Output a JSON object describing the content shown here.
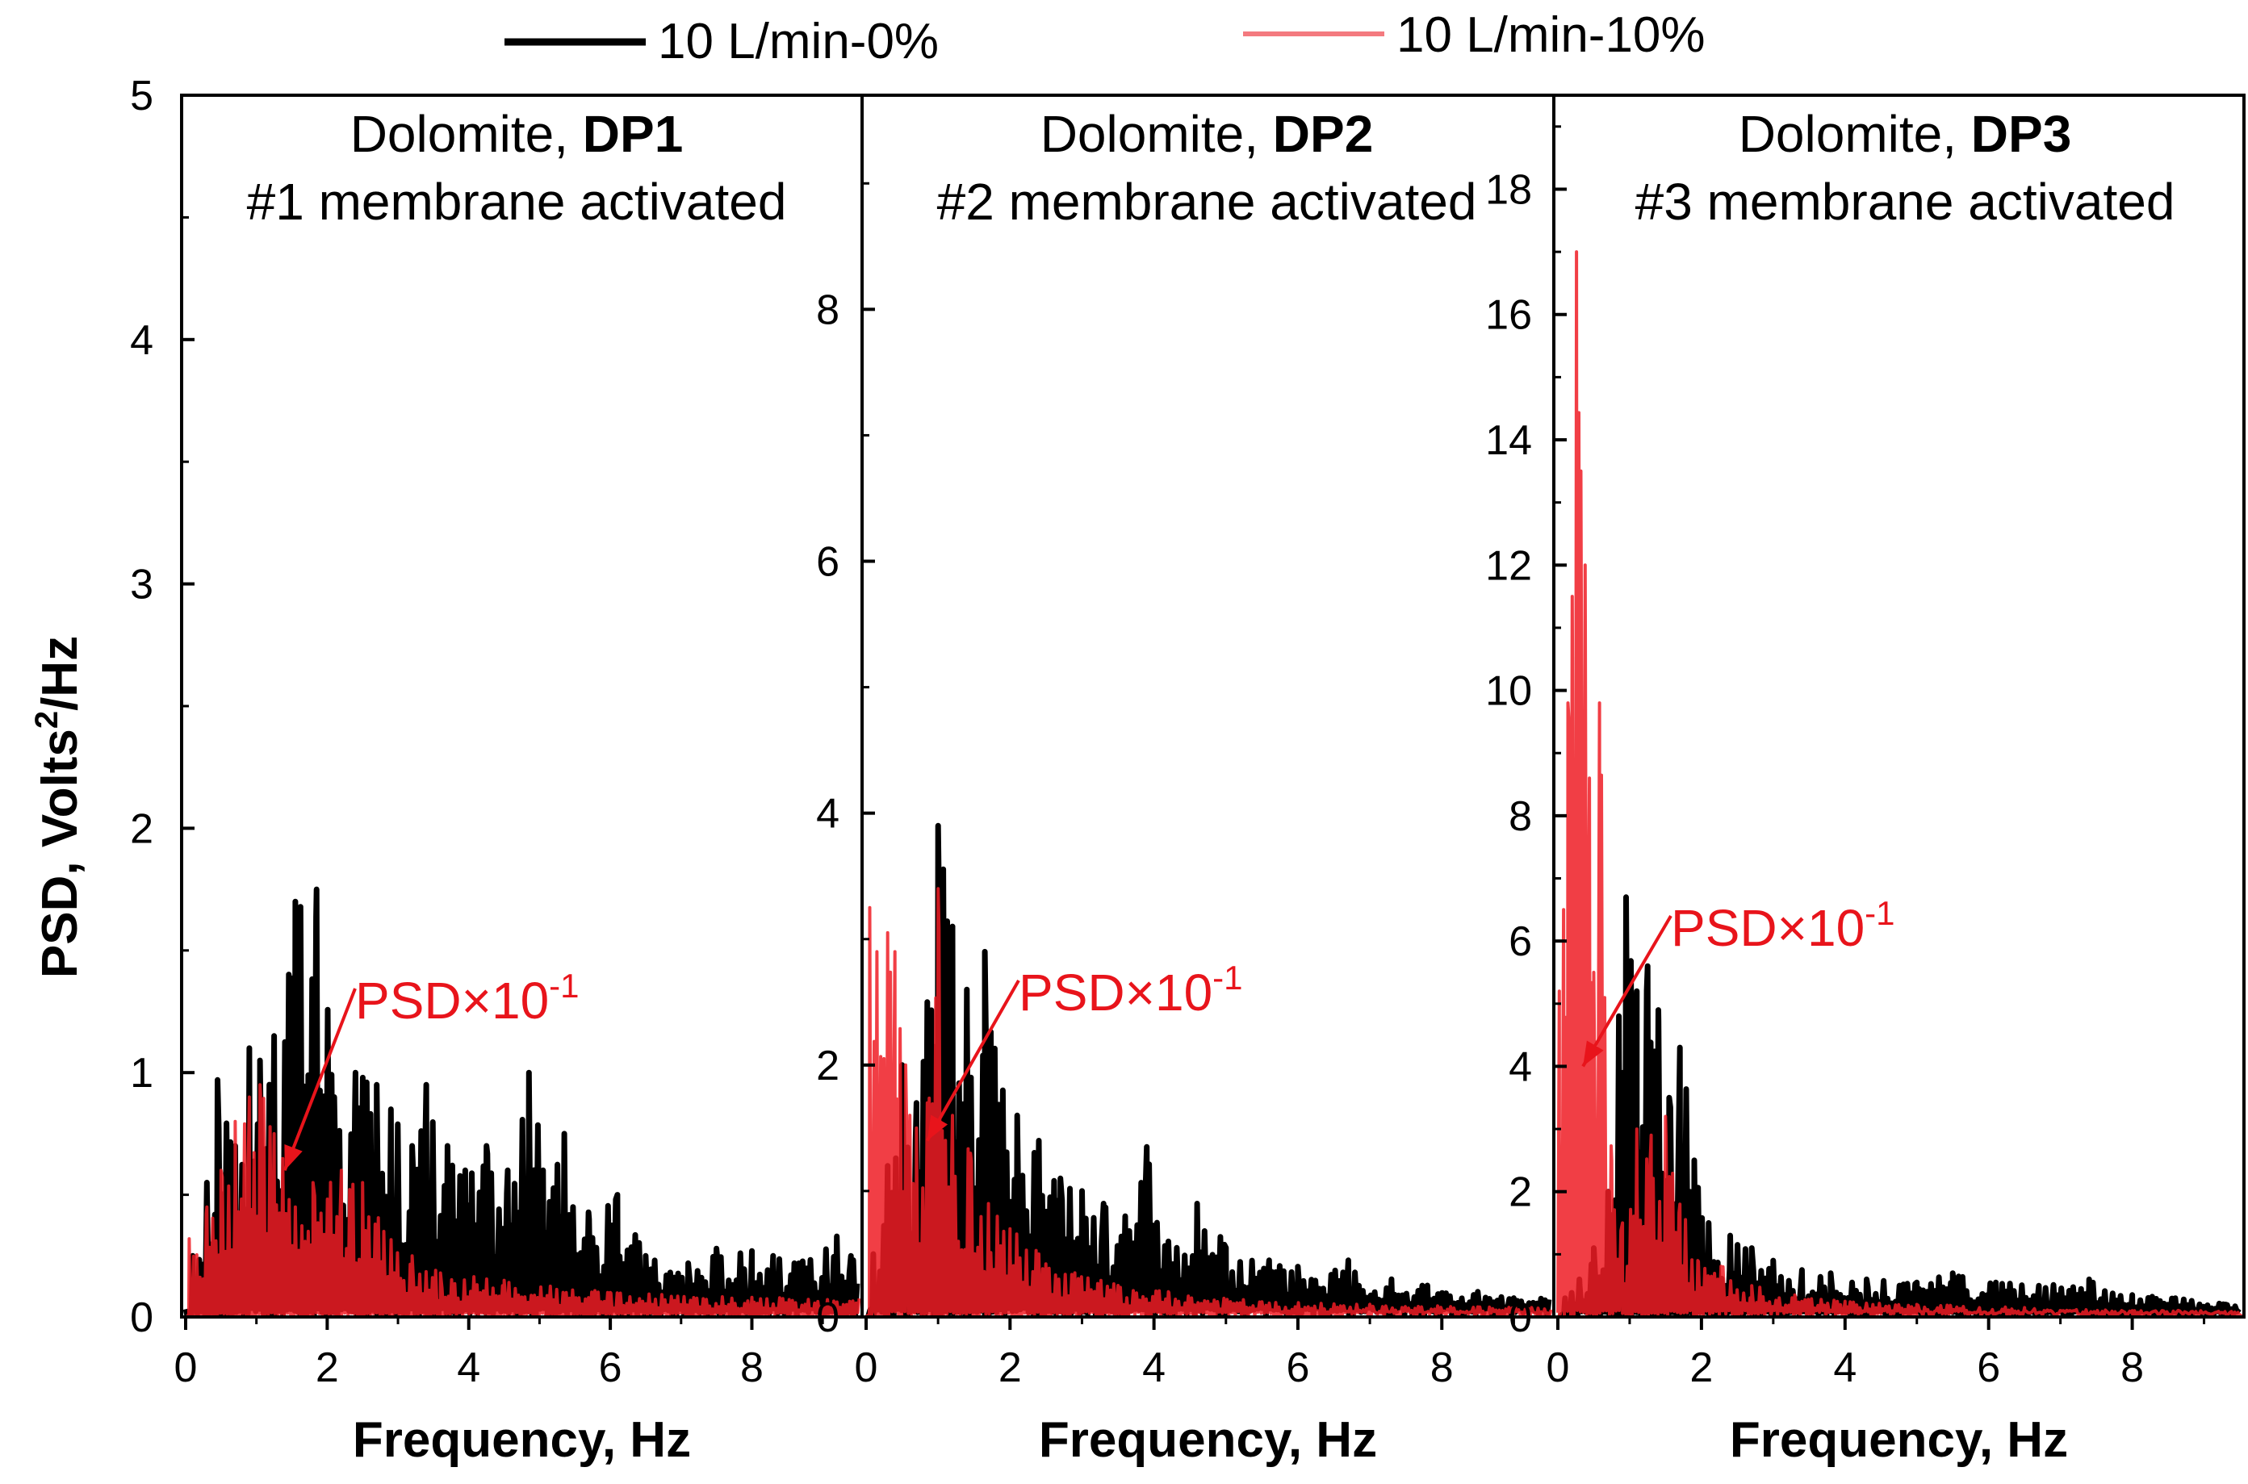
{
  "colors": {
    "series_0pct": "#000000",
    "series_10pct": "#ee1c25",
    "series_10pct_light": "#f47a7f",
    "annotation": "#e8141b",
    "axis": "#000000"
  },
  "legend": [
    {
      "label": "10 L/min-0%",
      "color": "#000000"
    },
    {
      "label": "10 L/min-10%",
      "color": "#f47a7f"
    }
  ],
  "y_axis_title": {
    "main": "PSD, Volts",
    "sup": "2",
    "tail": "/Hz"
  },
  "chart_data": [
    {
      "type": "line",
      "title": "Dolomite, DP1",
      "title_prefix": "Dolomite, ",
      "title_bold": "DP1",
      "subtitle": "#1 membrane activated",
      "xlabel": "Frequency, Hz",
      "ylabel": "PSD, Volts²/Hz",
      "xlim": [
        0,
        9.5
      ],
      "ylim": [
        0,
        5
      ],
      "x_ticks": [
        "0",
        "2",
        "4",
        "6",
        "8"
      ],
      "y_ticks": [
        "0",
        "1",
        "2",
        "3",
        "4",
        "5"
      ],
      "annotation": {
        "text": "PSD×10",
        "sup": "-1",
        "arrow_to": [
          1.4,
          0.6
        ]
      },
      "series": [
        {
          "name": "10 L/min-0%",
          "peaks": [
            [
              0.1,
              0.25
            ],
            [
              0.3,
              0.55
            ],
            [
              0.45,
              0.97
            ],
            [
              0.7,
              0.7
            ],
            [
              0.9,
              1.1
            ],
            [
              1.05,
              1.05
            ],
            [
              1.25,
              1.15
            ],
            [
              1.55,
              1.7
            ],
            [
              1.85,
              1.75
            ],
            [
              2.1,
              0.9
            ],
            [
              2.4,
              1.0
            ],
            [
              2.7,
              0.95
            ],
            [
              2.9,
              0.85
            ],
            [
              3.2,
              0.7
            ],
            [
              3.4,
              0.95
            ],
            [
              3.7,
              0.7
            ],
            [
              3.95,
              0.6
            ],
            [
              4.25,
              0.7
            ],
            [
              4.55,
              0.6
            ],
            [
              4.85,
              1.0
            ],
            [
              5.05,
              0.6
            ],
            [
              5.35,
              0.75
            ],
            [
              5.7,
              0.4
            ],
            [
              6.1,
              0.5
            ],
            [
              6.5,
              0.25
            ],
            [
              7.1,
              0.22
            ],
            [
              7.5,
              0.28
            ],
            [
              8.0,
              0.27
            ],
            [
              8.3,
              0.25
            ],
            [
              8.6,
              0.22
            ],
            [
              9.2,
              0.33
            ],
            [
              9.4,
              0.25
            ]
          ],
          "noise_level": 0.12
        },
        {
          "name": "10 L/min-10%",
          "peaks": [
            [
              0.05,
              0.32
            ],
            [
              0.3,
              0.45
            ],
            [
              0.5,
              0.6
            ],
            [
              0.7,
              0.8
            ],
            [
              0.9,
              0.9
            ],
            [
              1.05,
              0.95
            ],
            [
              1.25,
              0.75
            ],
            [
              1.55,
              0.45
            ],
            [
              1.8,
              0.55
            ],
            [
              2.2,
              0.6
            ],
            [
              2.5,
              0.55
            ],
            [
              2.8,
              0.35
            ],
            [
              3.2,
              0.25
            ],
            [
              3.6,
              0.18
            ],
            [
              4.5,
              0.15
            ],
            [
              6.0,
              0.1
            ],
            [
              8.0,
              0.08
            ]
          ],
          "noise_level": 0.06
        }
      ]
    },
    {
      "type": "line",
      "title": "Dolomite, DP2",
      "title_prefix": "Dolomite, ",
      "title_bold": "DP2",
      "subtitle": "#2 membrane activated",
      "xlabel": "Frequency, Hz",
      "ylabel": "",
      "xlim": [
        0,
        9.5
      ],
      "ylim": [
        0,
        9.7
      ],
      "x_ticks": [
        "0",
        "2",
        "4",
        "6",
        "8"
      ],
      "y_ticks": [
        "0",
        "2",
        "4",
        "6",
        "8"
      ],
      "annotation": {
        "text": "PSD×10",
        "sup": "-1",
        "arrow_to": [
          0.85,
          1.4
        ]
      },
      "series": [
        {
          "name": "10 L/min-0%",
          "peaks": [
            [
              0.1,
              0.5
            ],
            [
              0.3,
              1.2
            ],
            [
              0.5,
              2.0
            ],
            [
              0.7,
              1.7
            ],
            [
              0.85,
              2.5
            ],
            [
              1.0,
              3.9
            ],
            [
              1.2,
              3.1
            ],
            [
              1.4,
              2.6
            ],
            [
              1.65,
              2.9
            ],
            [
              1.9,
              1.8
            ],
            [
              2.1,
              1.6
            ],
            [
              2.4,
              1.4
            ],
            [
              2.7,
              1.1
            ],
            [
              3.0,
              1.0
            ],
            [
              3.3,
              0.9
            ],
            [
              3.6,
              0.8
            ],
            [
              3.9,
              1.35
            ],
            [
              4.2,
              0.6
            ],
            [
              4.6,
              0.9
            ],
            [
              5.0,
              0.55
            ],
            [
              5.6,
              0.45
            ],
            [
              6.0,
              0.4
            ],
            [
              6.7,
              0.45
            ],
            [
              7.3,
              0.3
            ],
            [
              7.8,
              0.25
            ],
            [
              8.5,
              0.2
            ],
            [
              9.0,
              0.15
            ]
          ],
          "noise_level": 0.25
        },
        {
          "name": "10 L/min-10%",
          "peaks": [
            [
              0.05,
              3.25
            ],
            [
              0.15,
              2.9
            ],
            [
              0.3,
              3.05
            ],
            [
              0.4,
              2.9
            ],
            [
              0.55,
              2.0
            ],
            [
              0.7,
              1.5
            ],
            [
              0.85,
              1.7
            ],
            [
              1.0,
              3.4
            ],
            [
              1.2,
              1.6
            ],
            [
              1.45,
              1.3
            ],
            [
              1.7,
              0.9
            ],
            [
              2.0,
              0.7
            ],
            [
              2.4,
              0.5
            ],
            [
              2.9,
              0.35
            ],
            [
              3.5,
              0.25
            ],
            [
              4.2,
              0.2
            ],
            [
              5.5,
              0.12
            ],
            [
              7.0,
              0.1
            ],
            [
              8.5,
              0.08
            ]
          ],
          "noise_level": 0.15
        }
      ]
    },
    {
      "type": "line",
      "title": "Dolomite, DP3",
      "title_prefix": "Dolomite, ",
      "title_bold": "DP3",
      "subtitle": "#3 membrane activated",
      "xlabel": "Frequency, Hz",
      "ylabel": "",
      "xlim": [
        0,
        9.5
      ],
      "ylim": [
        0,
        19.5
      ],
      "x_ticks": [
        "0",
        "2",
        "4",
        "6",
        "8"
      ],
      "y_ticks": [
        "0",
        "2",
        "4",
        "6",
        "8",
        "10",
        "12",
        "14",
        "16",
        "18"
      ],
      "annotation": {
        "text": "PSD×10",
        "sup": "-1",
        "arrow_to": [
          0.35,
          4.0
        ]
      },
      "series": [
        {
          "name": "10 L/min-0%",
          "peaks": [
            [
              0.1,
              0.3
            ],
            [
              0.3,
              0.6
            ],
            [
              0.5,
              1.1
            ],
            [
              0.7,
              2.0
            ],
            [
              0.85,
              4.8
            ],
            [
              0.95,
              6.7
            ],
            [
              1.1,
              5.2
            ],
            [
              1.25,
              5.6
            ],
            [
              1.4,
              4.9
            ],
            [
              1.55,
              3.5
            ],
            [
              1.7,
              4.3
            ],
            [
              1.9,
              2.5
            ],
            [
              2.1,
              1.5
            ],
            [
              2.4,
              1.3
            ],
            [
              2.7,
              1.1
            ],
            [
              3.0,
              0.9
            ],
            [
              3.4,
              0.75
            ],
            [
              3.8,
              0.7
            ],
            [
              4.3,
              0.6
            ],
            [
              5.0,
              0.55
            ],
            [
              5.5,
              0.7
            ],
            [
              6.1,
              0.55
            ],
            [
              6.7,
              0.5
            ],
            [
              7.4,
              0.6
            ],
            [
              8.0,
              0.35
            ],
            [
              8.6,
              0.3
            ],
            [
              9.3,
              0.2
            ]
          ],
          "noise_level": 0.3
        },
        {
          "name": "10 L/min-10%",
          "peaks": [
            [
              0.02,
              5.2
            ],
            [
              0.08,
              6.5
            ],
            [
              0.14,
              9.8
            ],
            [
              0.2,
              11.5
            ],
            [
              0.26,
              17.0
            ],
            [
              0.32,
              13.5
            ],
            [
              0.38,
              12.0
            ],
            [
              0.44,
              8.6
            ],
            [
              0.5,
              5.5
            ],
            [
              0.58,
              9.8
            ],
            [
              0.65,
              4.5
            ],
            [
              0.75,
              2.5
            ],
            [
              0.9,
              1.5
            ],
            [
              1.1,
              3.0
            ],
            [
              1.3,
              2.9
            ],
            [
              1.5,
              3.2
            ],
            [
              1.7,
              1.8
            ],
            [
              1.95,
              0.9
            ],
            [
              2.3,
              0.8
            ],
            [
              2.7,
              0.5
            ],
            [
              3.3,
              0.35
            ],
            [
              4.0,
              0.25
            ],
            [
              5.0,
              0.2
            ],
            [
              6.5,
              0.15
            ],
            [
              8.0,
              0.1
            ]
          ],
          "noise_level": 0.35
        }
      ]
    }
  ]
}
